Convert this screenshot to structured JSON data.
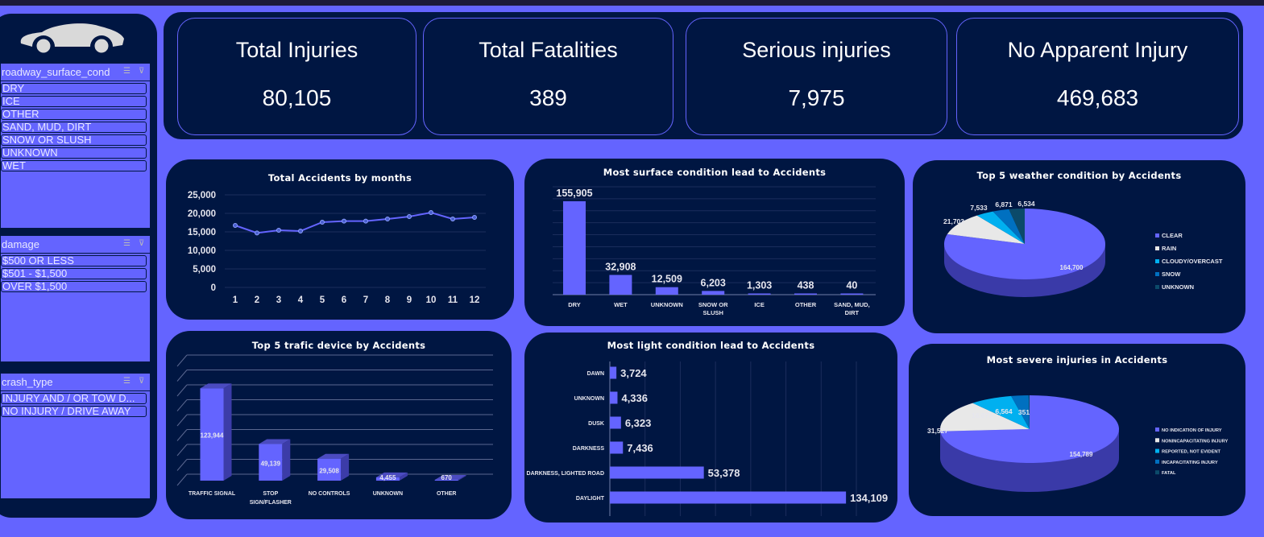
{
  "kpis": [
    {
      "title": "Total Injuries",
      "value": "80,105"
    },
    {
      "title": "Total Fatalities",
      "value": "389"
    },
    {
      "title": "Serious injuries",
      "value": "7,975"
    },
    {
      "title": "No Apparent Injury",
      "value": "469,683"
    }
  ],
  "slicers": [
    {
      "title": "roadway_surface_cond",
      "items": [
        "DRY",
        "ICE",
        "OTHER",
        "SAND, MUD, DIRT",
        "SNOW OR SLUSH",
        "UNKNOWN",
        "WET"
      ]
    },
    {
      "title": "damage",
      "items": [
        "$500 OR LESS",
        "$501 - $1,500",
        "OVER $1,500"
      ]
    },
    {
      "title": "crash_type",
      "items": [
        "INJURY AND / OR TOW D...",
        "NO INJURY / DRIVE AWAY"
      ]
    }
  ],
  "chart_data": [
    {
      "id": "months",
      "type": "line",
      "title": "Total Accidents by months",
      "x": [
        1,
        2,
        3,
        4,
        5,
        6,
        7,
        8,
        9,
        10,
        11,
        12
      ],
      "values": [
        16740,
        14710,
        15430,
        15220,
        17610,
        17900,
        17900,
        18480,
        19130,
        20220,
        18480,
        18910
      ],
      "yticks": [
        "0",
        "5,000",
        "10,000",
        "15,000",
        "20,000",
        "25,000"
      ],
      "ylim": [
        0,
        25000
      ],
      "grid": true,
      "color": "#6464ff"
    },
    {
      "id": "surface",
      "type": "bar",
      "title": "Most surface condition lead to Accidents",
      "categories": [
        [
          "DRY"
        ],
        [
          "WET"
        ],
        [
          "UNKNOWN"
        ],
        [
          "SNOW OR",
          "SLUSH"
        ],
        [
          "ICE"
        ],
        [
          "OTHER"
        ],
        [
          "SAND, MUD,",
          "DIRT"
        ]
      ],
      "values": [
        155905,
        32908,
        12509,
        6203,
        1303,
        438,
        40
      ],
      "labels": [
        "155,905",
        "32,908",
        "12,509",
        "6,203",
        "1,303",
        "438",
        "40"
      ],
      "ylim": [
        0,
        180000
      ],
      "grid": true,
      "color": "#6464ff"
    },
    {
      "id": "weather",
      "type": "pie",
      "title": "Top 5 weather condition by Accidents",
      "categories": [
        "CLEAR",
        "RAIN",
        "CLOUDY/OVERCAST",
        "SNOW",
        "UNKNOWN"
      ],
      "values": [
        164700,
        21703,
        7533,
        6871,
        6534
      ],
      "labels": [
        "164,700",
        "21,703",
        "7,533",
        "6,871",
        "6,534"
      ],
      "colors": [
        "#6464ff",
        "#e8e8e8",
        "#00b0f0",
        "#0070c0",
        "#0b4a6a"
      ],
      "legend": "right"
    },
    {
      "id": "traffic",
      "type": "bar",
      "title": "Top 5 trafic device by Accidents",
      "categories": [
        [
          "TRAFFIC SIGNAL"
        ],
        [
          "STOP",
          "SIGN/FLASHER"
        ],
        [
          "NO CONTROLS"
        ],
        [
          "UNKNOWN"
        ],
        [
          "OTHER"
        ]
      ],
      "values": [
        123944,
        49139,
        29508,
        4455,
        670
      ],
      "labels": [
        "123,944",
        "49,139",
        "29,508",
        "4,455",
        "670"
      ],
      "ylim": [
        0,
        160000
      ],
      "grid": true,
      "color": "#6464ff"
    },
    {
      "id": "light",
      "type": "bar",
      "orientation": "horizontal",
      "title": "Most light condition lead to Accidents",
      "categories": [
        "DAWN",
        "UNKNOWN",
        "DUSK",
        "DARKNESS",
        "DARKNESS, LIGHTED ROAD",
        "DAYLIGHT"
      ],
      "values": [
        3724,
        4336,
        6323,
        7436,
        53378,
        134109
      ],
      "labels": [
        "3,724",
        "4,336",
        "6,323",
        "7,436",
        "53,378",
        "134,109"
      ],
      "xlim": [
        0,
        140000
      ],
      "grid": true,
      "color": "#6464ff"
    },
    {
      "id": "severe",
      "type": "pie",
      "title": "Most severe injuries in Accidents",
      "categories": [
        "NO INDICATION OF INJURY",
        "NONINCAPACITATING INJURY",
        "REPORTED, NOT EVIDENT",
        "INCAPACITATING INJURY",
        "FATAL"
      ],
      "values": [
        154789,
        31527,
        16075,
        6564,
        351
      ],
      "labels": [
        "154,789",
        "31,527",
        "16,075",
        "6,564",
        "351"
      ],
      "colors": [
        "#6464ff",
        "#e8e8e8",
        "#00b0f0",
        "#0070c0",
        "#0b4a6a"
      ],
      "legend": "right"
    }
  ]
}
